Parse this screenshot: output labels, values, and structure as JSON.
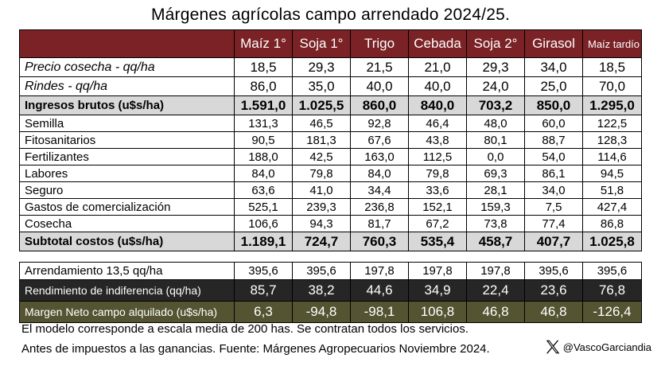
{
  "title": "Márgenes agrícolas campo arrendado 2024/25.",
  "columns": [
    "Maíz 1°",
    "Soja 1°",
    "Trigo",
    "Cebada",
    "Soja 2°",
    "Girasol",
    "Maíz tardío"
  ],
  "rows": [
    {
      "label": "Precio cosecha - qq/ha",
      "values": [
        "18,5",
        "29,3",
        "21,5",
        "21,0",
        "29,3",
        "34,0",
        "18,5"
      ]
    },
    {
      "label": "Rindes - qq/ha",
      "values": [
        "86,0",
        "35,0",
        "40,0",
        "40,0",
        "24,0",
        "25,0",
        "70,0"
      ]
    },
    {
      "label": "Ingresos brutos (u$s/ha)",
      "values": [
        "1.591,0",
        "1.025,5",
        "860,0",
        "840,0",
        "703,2",
        "850,0",
        "1.295,0"
      ]
    },
    {
      "label": "Semilla",
      "values": [
        "131,3",
        "46,5",
        "92,8",
        "46,4",
        "48,0",
        "60,0",
        "122,5"
      ]
    },
    {
      "label": "Fitosanitarios",
      "values": [
        "90,5",
        "181,3",
        "67,6",
        "43,8",
        "80,1",
        "88,7",
        "128,3"
      ]
    },
    {
      "label": "Fertilizantes",
      "values": [
        "188,0",
        "42,5",
        "163,0",
        "112,5",
        "0,0",
        "54,0",
        "114,6"
      ]
    },
    {
      "label": "Labores",
      "values": [
        "84,0",
        "79,8",
        "84,0",
        "79,8",
        "69,3",
        "86,1",
        "94,5"
      ]
    },
    {
      "label": "Seguro",
      "values": [
        "63,6",
        "41,0",
        "34,4",
        "33,6",
        "28,1",
        "34,0",
        "51,8"
      ]
    },
    {
      "label": "Gastos de comercialización",
      "values": [
        "525,1",
        "239,3",
        "236,8",
        "152,1",
        "159,3",
        "7,5",
        "427,4"
      ]
    },
    {
      "label": "Cosecha",
      "values": [
        "106,6",
        "94,3",
        "81,7",
        "67,2",
        "73,8",
        "77,4",
        "86,8"
      ]
    },
    {
      "label": "Subtotal costos (u$s/ha)",
      "values": [
        "1.189,1",
        "724,7",
        "760,3",
        "535,4",
        "458,7",
        "407,7",
        "1.025,8"
      ]
    }
  ],
  "rows2": [
    {
      "label": "Arrendamiento 13,5 qq/ha",
      "values": [
        "395,6",
        "395,6",
        "197,8",
        "197,8",
        "197,8",
        "395,6",
        "395,6"
      ]
    },
    {
      "label": "Rendimiento de indiferencia (qq/ha)",
      "values": [
        "85,7",
        "38,2",
        "44,6",
        "34,9",
        "22,4",
        "23,6",
        "76,8"
      ]
    },
    {
      "label": "Margen Neto campo alquilado (u$s/ha)",
      "values": [
        "6,3",
        "-94,8",
        "-98,1",
        "106,8",
        "46,8",
        "46,8",
        "-126,4"
      ]
    }
  ],
  "notes": [
    "El modelo corresponde a escala media de 200 has. Se contratan todos los servicios.",
    "Antes de impuestos a las ganancias. Fuente: Márgenes Agropecuarios Noviembre 2024."
  ],
  "handle": "@VascoGarciandia",
  "icons": {
    "brand": "x-logo-icon"
  }
}
